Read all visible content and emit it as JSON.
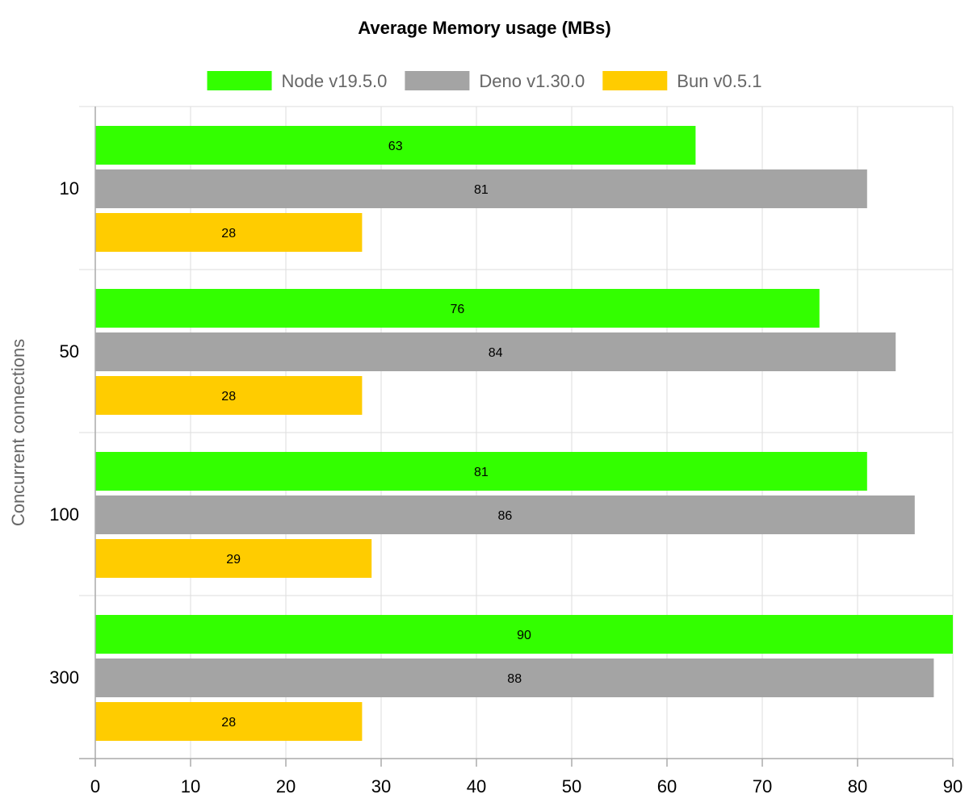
{
  "chart_data": {
    "type": "bar",
    "orientation": "horizontal",
    "title": "Average Memory usage (MBs)",
    "ylabel": "Concurrent connections",
    "xlabel": "",
    "categories": [
      "10",
      "50",
      "100",
      "300"
    ],
    "series": [
      {
        "name": "Node v19.5.0",
        "color": "#33ff00",
        "values": [
          63,
          76,
          81,
          90
        ]
      },
      {
        "name": "Deno v1.30.0",
        "color": "#a4a4a4",
        "values": [
          81,
          84,
          86,
          88
        ]
      },
      {
        "name": "Bun v0.5.1",
        "color": "#ffcc00",
        "values": [
          28,
          28,
          29,
          28
        ]
      }
    ],
    "xlim": [
      0,
      90
    ],
    "xticks": [
      0,
      10,
      20,
      30,
      40,
      50,
      60,
      70,
      80,
      90
    ],
    "grid": true,
    "legend_position": "top"
  }
}
